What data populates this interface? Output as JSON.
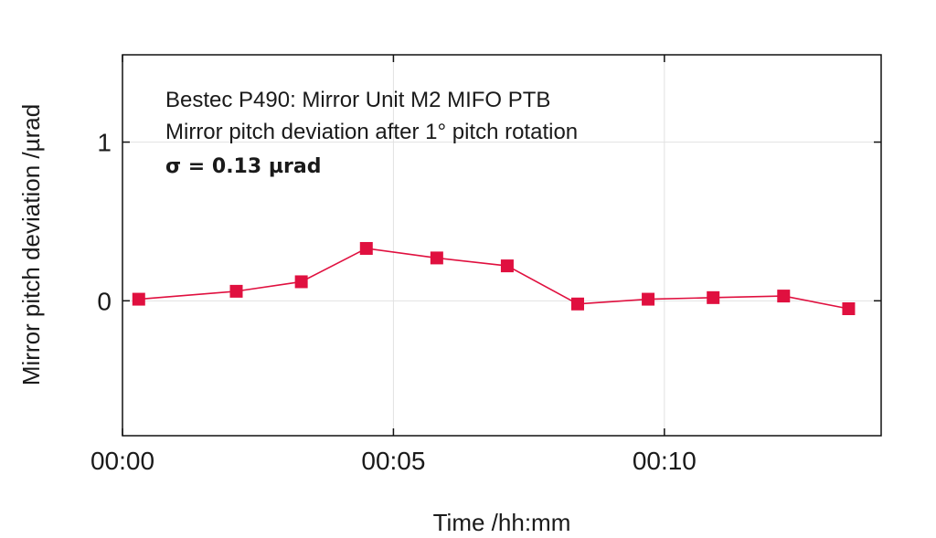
{
  "chart_data": {
    "type": "line",
    "title": "",
    "xlabel": "Time /hh:mm",
    "ylabel": "Mirror pitch deviation /µrad",
    "annotations": [
      "Bestec P490: Mirror Unit M2 MIFO PTB",
      "Mirror pitch deviation after 1° pitch rotation",
      "σ = 0.13 µrad"
    ],
    "x_unit": "minutes",
    "xlim": [
      0,
      14
    ],
    "ylim": [
      -0.85,
      1.55
    ],
    "xticks": [
      0,
      5,
      10
    ],
    "xtick_labels": [
      "00:00",
      "00:05",
      "00:10"
    ],
    "yticks": [
      0,
      1
    ],
    "ytick_labels": [
      "0",
      "1"
    ],
    "grid": true,
    "series": [
      {
        "name": "",
        "color": "#e0103f",
        "marker": "square",
        "x": [
          0.3,
          2.1,
          3.3,
          4.5,
          5.8,
          7.1,
          8.4,
          9.7,
          10.9,
          12.2,
          13.4
        ],
        "values": [
          0.01,
          0.06,
          0.12,
          0.33,
          0.27,
          0.22,
          -0.02,
          0.01,
          0.02,
          0.03,
          -0.05
        ]
      }
    ]
  }
}
